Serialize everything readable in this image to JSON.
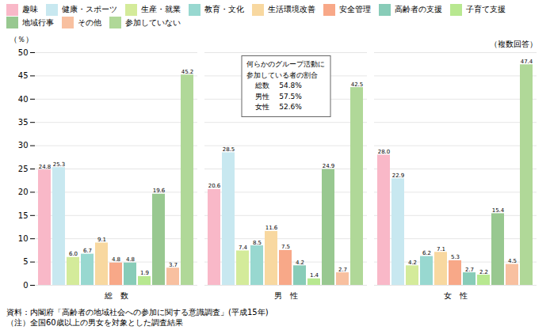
{
  "chart_data": {
    "type": "bar",
    "categories": [
      "総　数",
      "男　性",
      "女　性"
    ],
    "series": [
      {
        "name": "趣味",
        "color": "#f9b8c8",
        "values": [
          24.8,
          20.6,
          28.0
        ],
        "value_labels": [
          "24.8",
          "20.6",
          "28.0"
        ]
      },
      {
        "name": "健康・スポーツ",
        "color": "#c8e8f0",
        "values": [
          25.3,
          28.5,
          22.9
        ],
        "value_labels": [
          "25.3",
          "28.5",
          "22.9"
        ]
      },
      {
        "name": "生産・就業",
        "color": "#d4eb9a",
        "values": [
          6.0,
          7.4,
          4.2
        ],
        "value_labels": [
          "6.0",
          "7.4",
          "4.2"
        ]
      },
      {
        "name": "教育・文化",
        "color": "#98d8d0",
        "values": [
          6.7,
          8.5,
          6.2
        ],
        "value_labels": [
          "6.7",
          "8.5",
          "6.2"
        ]
      },
      {
        "name": "生活環境改善",
        "color": "#f8d8a0",
        "values": [
          9.1,
          11.6,
          7.1
        ],
        "value_labels": [
          "9.1",
          "11.6",
          "7.1"
        ]
      },
      {
        "name": "安全管理",
        "color": "#f8a888",
        "values": [
          4.8,
          7.5,
          5.3
        ],
        "value_labels": [
          "4.8",
          "7.5",
          "5.3"
        ]
      },
      {
        "name": "高齢者の支援",
        "color": "#88ccb8",
        "values": [
          4.8,
          4.2,
          2.7
        ],
        "value_labels": [
          "4.8",
          "4.2",
          "2.7"
        ]
      },
      {
        "name": "子育て支援",
        "color": "#b8e890",
        "values": [
          1.9,
          1.4,
          2.2
        ],
        "value_labels": [
          "1.9",
          "1.4",
          "2.2"
        ]
      },
      {
        "name": "地域行事",
        "color": "#98c890",
        "values": [
          19.6,
          24.9,
          15.4
        ],
        "value_labels": [
          "19.6",
          "24.9",
          "15.4"
        ]
      },
      {
        "name": "その他",
        "color": "#f8c0a0",
        "values": [
          3.7,
          2.7,
          4.5
        ],
        "value_labels": [
          "3.7",
          "2.7",
          "4.5"
        ]
      },
      {
        "name": "参加していない",
        "color": "#b0d898",
        "values": [
          45.2,
          42.5,
          47.4
        ],
        "value_labels": [
          "45.2",
          "42.5",
          "47.4"
        ]
      }
    ],
    "ylim": [
      0,
      50
    ],
    "yticks": [
      0,
      5,
      10,
      15,
      20,
      25,
      30,
      35,
      40,
      45,
      50
    ],
    "ylabel": "（％）",
    "annotations": [
      "（複数回答）",
      "何らかのグループ活動に\n参加している者の割合\n    総数　 54.8%\n    男性　 57.5%\n    女性　 52.6%"
    ],
    "caption": "資料：内閣府「高齢者の地域社会への参加に関する意識調査」(平成15年)\n（注）全国60歳以上の男女を対象とした調査結果",
    "grid": true,
    "legend": "top",
    "data_labels": true
  }
}
